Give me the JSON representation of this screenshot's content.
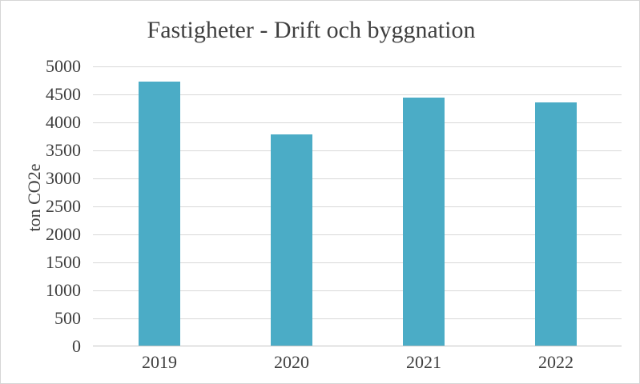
{
  "chart_data": {
    "type": "bar",
    "title": "Fastigheter - Drift och byggnation",
    "ylabel": "ton CO2e",
    "xlabel": "",
    "categories": [
      "2019",
      "2020",
      "2021",
      "2022"
    ],
    "values": [
      4720,
      3770,
      4430,
      4340
    ],
    "ylim": [
      0,
      5000
    ],
    "ytick_step": 500,
    "ytick_labels": [
      "0",
      "500",
      "1000",
      "1500",
      "2000",
      "2500",
      "3000",
      "3500",
      "4000",
      "4500",
      "5000"
    ],
    "grid": true,
    "legend": false,
    "colors": {
      "bar": "#4bacc6",
      "gridline": "#d9d9d9",
      "axis_line": "#c3c3c3",
      "text": "#404040",
      "title_text": "#3f3f3f",
      "frame_border": "#d6d6d6",
      "background": "#ffffff"
    }
  }
}
